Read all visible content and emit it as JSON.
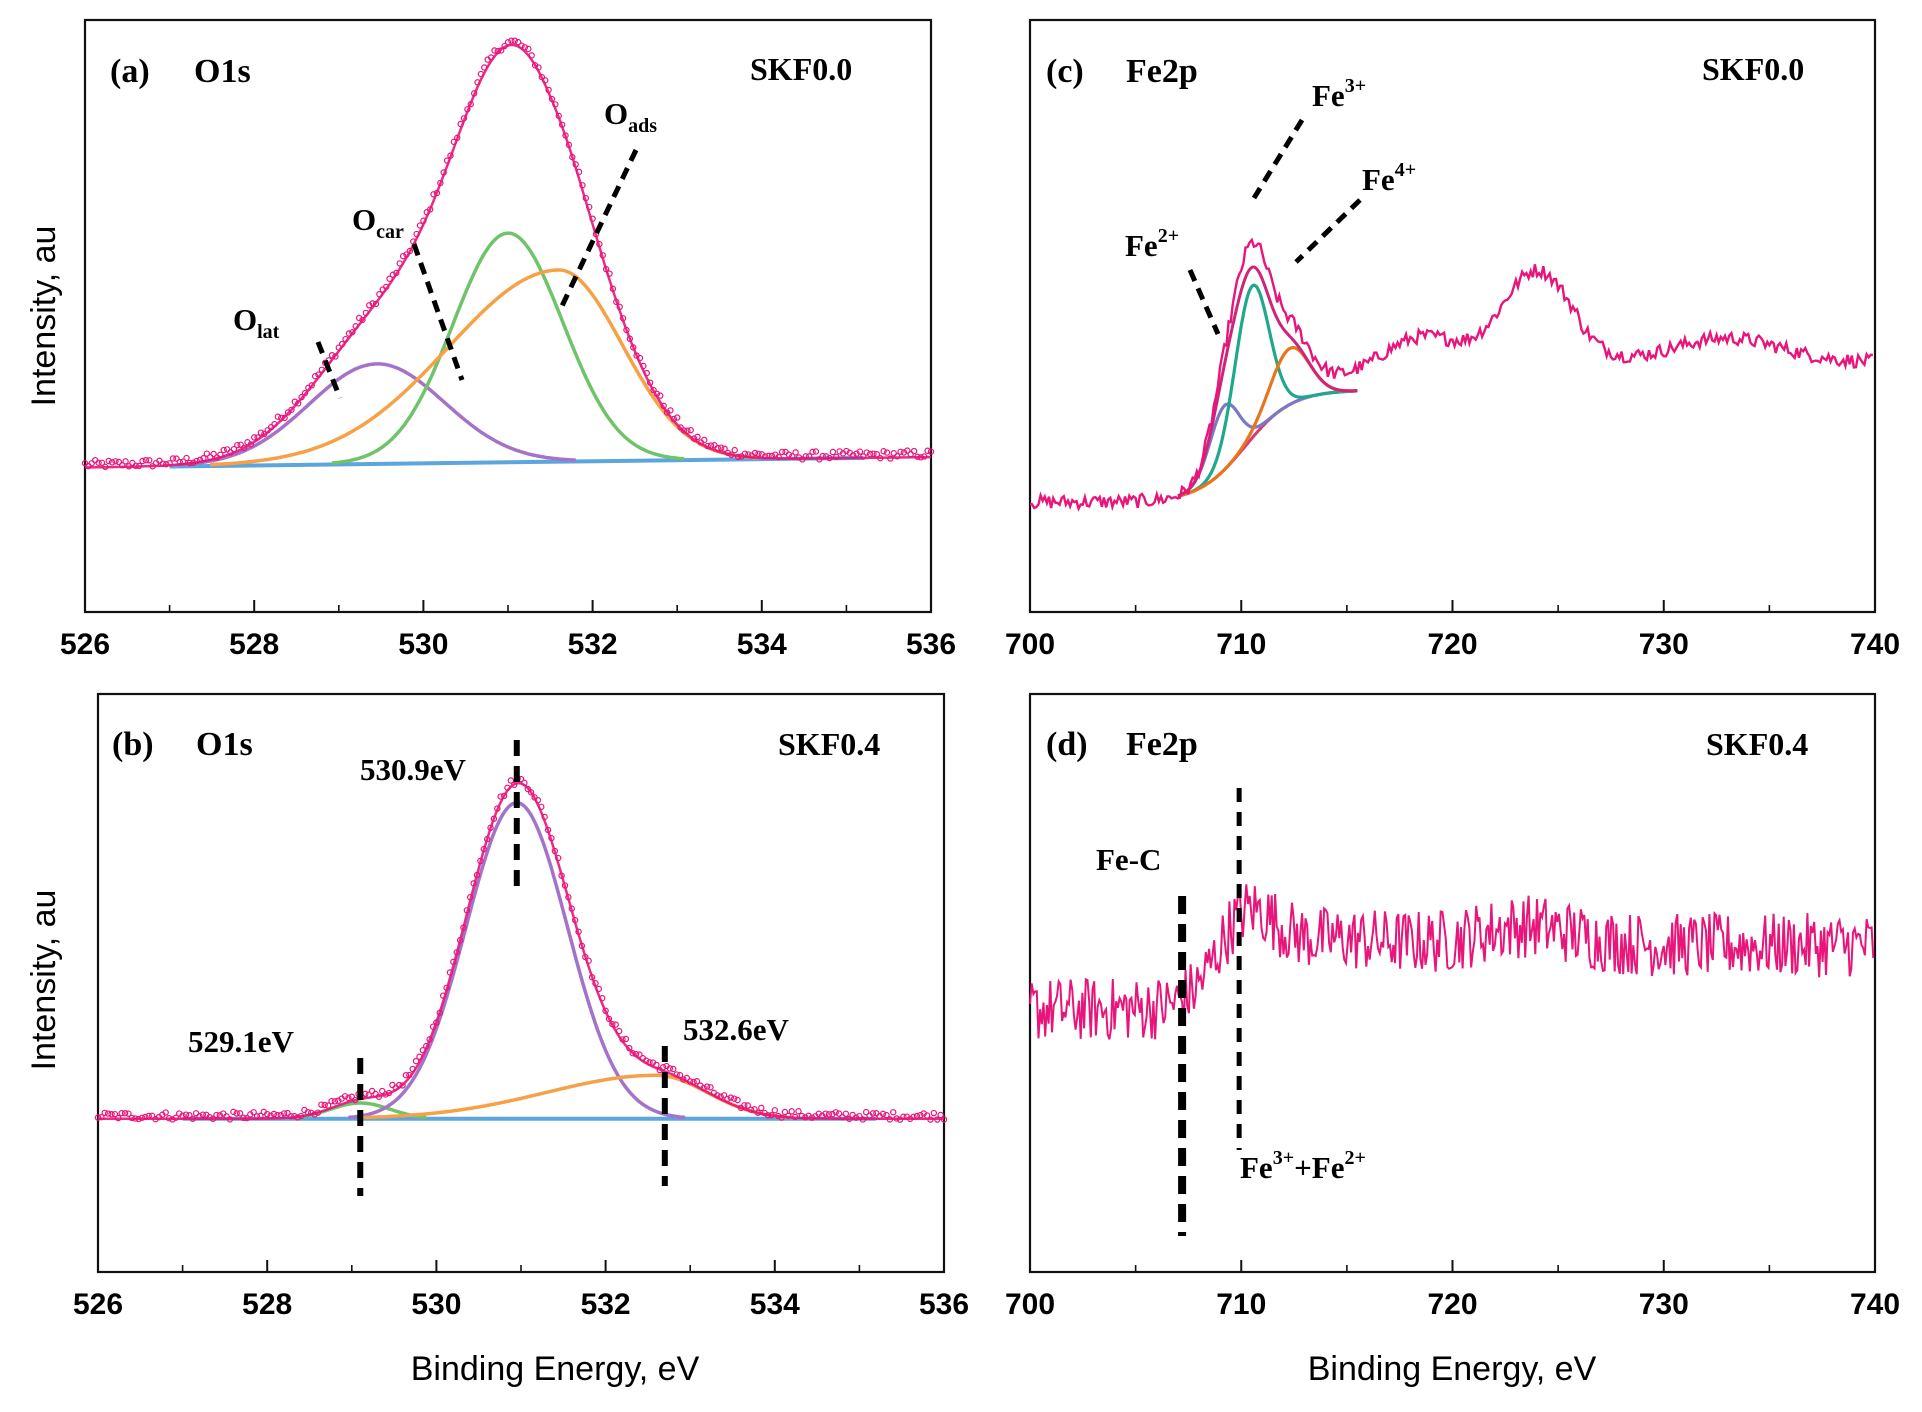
{
  "chart_data": [
    {
      "id": "a",
      "type": "line",
      "panel_label": "(a)",
      "title": "O1s",
      "sample": "SKF0.0",
      "ylabel": "Intensity, au",
      "xlabel": "",
      "xlim": [
        526,
        536
      ],
      "ylim": [
        0,
        1.2
      ],
      "ticks": [
        "526",
        "528",
        "530",
        "532",
        "534",
        "536"
      ],
      "series": [
        {
          "name": "raw",
          "color": "#e8157a",
          "style": "dotted"
        },
        {
          "name": "O_lat",
          "color": "#a572c9",
          "center": 529.45,
          "width": 0.8,
          "height": 0.24,
          "shape": "gaussian"
        },
        {
          "name": "O_car",
          "color": "#6fc36a",
          "center": 531.0,
          "width": 0.65,
          "height": 0.55,
          "shape": "gaussian"
        },
        {
          "name": "O_ads",
          "color": "#f7a147",
          "center": 531.6,
          "width": 0.75,
          "width_left": 1.3,
          "height": 0.46,
          "shape": "asym"
        },
        {
          "name": "baseline",
          "color": "#5ca6dd",
          "y_start": 0.15,
          "y_end": 0.175
        }
      ],
      "annotations": [
        {
          "label": "O",
          "sub": "lat",
          "at_x": 528.5
        },
        {
          "label": "O",
          "sub": "car",
          "at_x": 530.0
        },
        {
          "label": "O",
          "sub": "ads",
          "at_x": 532.4
        }
      ]
    },
    {
      "id": "b",
      "type": "line",
      "panel_label": "(b)",
      "title": "O1s",
      "sample": "SKF0.4",
      "ylabel": "Intensity, au",
      "xlabel": "Binding Energy, eV",
      "xlim": [
        526,
        536
      ],
      "ylim": [
        0,
        1.2
      ],
      "ticks": [
        "526",
        "528",
        "530",
        "532",
        "534",
        "536"
      ],
      "series": [
        {
          "name": "raw",
          "color": "#e8157a",
          "style": "dotted"
        },
        {
          "name": "peak_529.1",
          "color": "#6fc36a",
          "center": 529.1,
          "width": 0.35,
          "height": 0.04,
          "shape": "gaussian"
        },
        {
          "name": "peak_530.9",
          "color": "#a572c9",
          "center": 530.95,
          "width": 0.6,
          "height": 0.8,
          "shape": "gaussian"
        },
        {
          "name": "peak_532.6",
          "color": "#f7a147",
          "center": 532.6,
          "width": 0.6,
          "width_left": 1.3,
          "height": 0.11,
          "shape": "asym"
        },
        {
          "name": "baseline",
          "color": "#5ca6dd",
          "y_start": 0.15,
          "y_end": 0.15
        }
      ],
      "annotations": [
        {
          "text": "529.1eV",
          "marker_x": 529.1
        },
        {
          "text": "530.9eV",
          "marker_x": 530.95
        },
        {
          "text": "532.6eV",
          "marker_x": 532.7
        }
      ]
    },
    {
      "id": "c",
      "type": "line",
      "panel_label": "(c)",
      "title": "Fe2p",
      "sample": "SKF0.0",
      "ylabel": "",
      "xlabel": "",
      "xlim": [
        700,
        740
      ],
      "ylim": [
        0,
        1.2
      ],
      "ticks": [
        "700",
        "710",
        "720",
        "730",
        "740"
      ],
      "series": [
        {
          "name": "raw",
          "color": "#e8157a"
        },
        {
          "name": "Fe2+",
          "color": "#7a78c7",
          "center": 709.2,
          "width": 0.7,
          "height": 0.16,
          "shape": "gaussian"
        },
        {
          "name": "Fe3+",
          "color": "#1fa88b",
          "center": 710.5,
          "width": 0.8,
          "height": 0.38,
          "shape": "gaussian"
        },
        {
          "name": "Fe4+",
          "color": "#e8741c",
          "center": 712.3,
          "width": 0.9,
          "height": 0.14,
          "shape": "gaussian"
        },
        {
          "name": "background",
          "color": "#d63a7a"
        }
      ],
      "annotations": [
        {
          "label": "Fe",
          "sup": "2+"
        },
        {
          "label": "Fe",
          "sup": "3+"
        },
        {
          "label": "Fe",
          "sup": "4+"
        }
      ]
    },
    {
      "id": "d",
      "type": "line",
      "panel_label": "(d)",
      "title": "Fe2p",
      "sample": "SKF0.4",
      "ylabel": "",
      "xlabel": "Binding Energy, eV",
      "xlim": [
        700,
        740
      ],
      "ylim": [
        0,
        1.2
      ],
      "ticks": [
        "700",
        "710",
        "720",
        "730",
        "740"
      ],
      "series": [
        {
          "name": "raw",
          "color": "#e8157a"
        }
      ],
      "annotations": [
        {
          "text": "Fe-C",
          "marker_x": 707.2
        },
        {
          "label": "Fe",
          "sup": "3+",
          "plus": "+Fe",
          "sup2": "2+",
          "marker_x": 709.9
        }
      ]
    }
  ]
}
